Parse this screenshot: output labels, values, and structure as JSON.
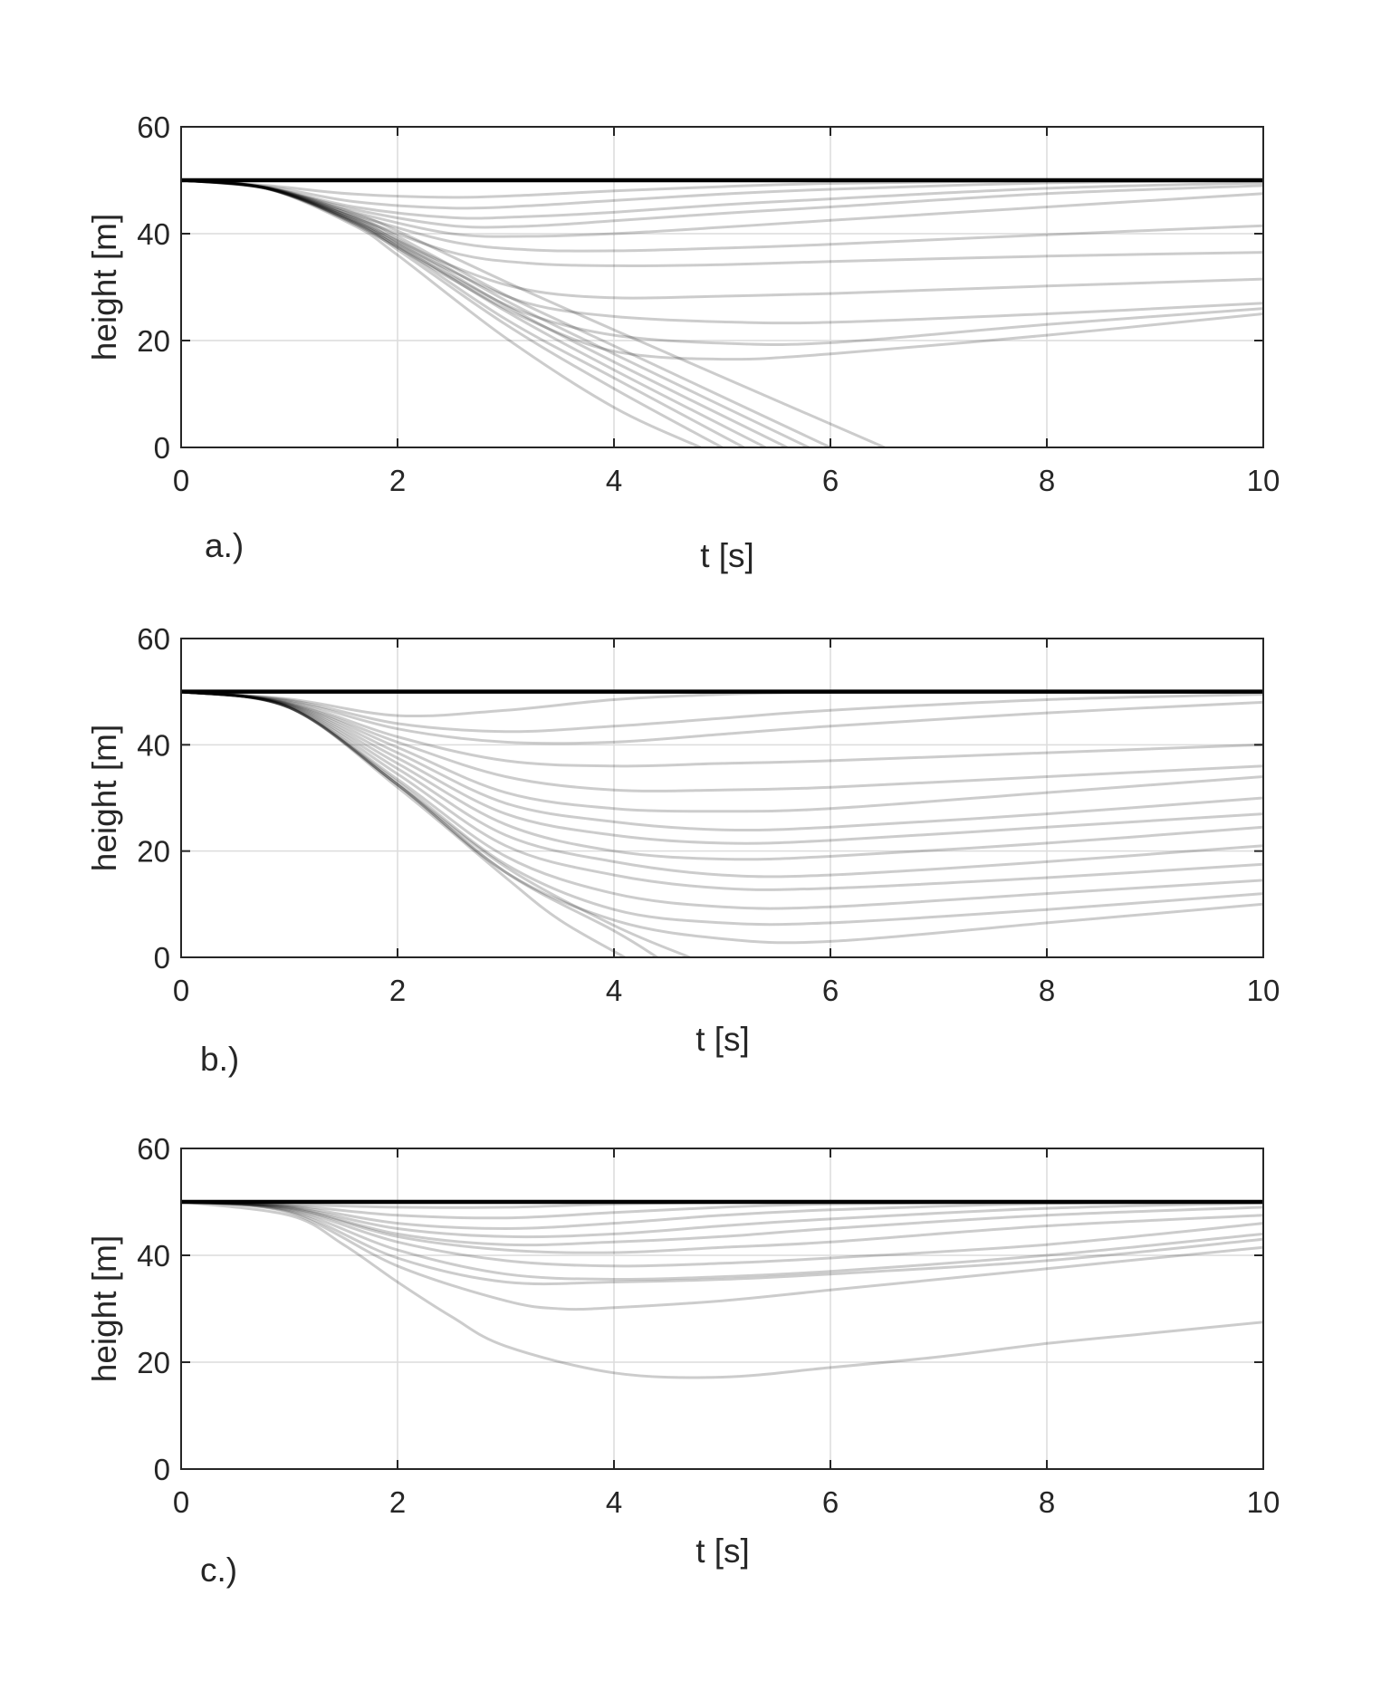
{
  "chart_data": [
    {
      "type": "line",
      "panel_label": "a.)",
      "xlabel": "t [s]",
      "ylabel": "height [m]",
      "xlim": [
        0,
        10
      ],
      "ylim": [
        0,
        60
      ],
      "xticks": [
        0,
        2,
        4,
        6,
        8,
        10
      ],
      "yticks": [
        0,
        20,
        40,
        60
      ],
      "grid": true,
      "reference_height": 50,
      "series": [
        {
          "t": [
            0,
            0.8,
            1.6,
            2.5,
            3.2,
            4.0,
            5.0,
            6.0,
            8.0,
            10.0
          ],
          "h": [
            50,
            49.0,
            47.4,
            46.8,
            47.2,
            48.0,
            48.8,
            49.4,
            49.9,
            50
          ]
        },
        {
          "t": [
            0,
            0.8,
            1.6,
            2.5,
            3.2,
            4.0,
            5.0,
            6.0,
            8.0,
            10.0
          ],
          "h": [
            50,
            48.8,
            46.0,
            44.8,
            45.2,
            46.2,
            47.4,
            48.3,
            49.5,
            50
          ]
        },
        {
          "t": [
            0,
            0.8,
            1.6,
            2.5,
            3.2,
            4.0,
            5.0,
            6.0,
            8.0,
            10.0
          ],
          "h": [
            50,
            48.6,
            45.0,
            43.0,
            43.2,
            44.0,
            45.4,
            46.5,
            48.5,
            49.5
          ]
        },
        {
          "t": [
            0,
            0.8,
            1.6,
            2.5,
            3.2,
            4.0,
            5.0,
            6.0,
            8.0,
            10.0
          ],
          "h": [
            50,
            48.6,
            44.5,
            41.5,
            41.4,
            42.4,
            43.8,
            45.0,
            47.5,
            49.0
          ]
        },
        {
          "t": [
            0,
            0.8,
            1.6,
            2.5,
            3.2,
            4.0,
            5.0,
            6.0,
            8.0,
            10.0
          ],
          "h": [
            50,
            48.5,
            44.0,
            40.0,
            39.5,
            40.0,
            41.2,
            42.5,
            45.0,
            47.5
          ]
        },
        {
          "t": [
            0,
            0.8,
            1.6,
            2.5,
            3.2,
            4.0,
            5.0,
            6.0,
            8.0,
            10.0
          ],
          "h": [
            50,
            48.5,
            43.5,
            38.5,
            37.0,
            36.8,
            37.3,
            38.0,
            39.8,
            41.5
          ]
        },
        {
          "t": [
            0,
            0.8,
            1.6,
            2.5,
            3.2,
            4.0,
            5.0,
            6.0,
            8.0,
            10.0
          ],
          "h": [
            50,
            48.4,
            43.0,
            36.5,
            34.5,
            34.0,
            34.2,
            34.8,
            35.8,
            36.5
          ]
        },
        {
          "t": [
            0,
            0.8,
            1.6,
            2.5,
            3.2,
            4.0,
            5.0,
            6.0,
            8.0,
            10.0
          ],
          "h": [
            50,
            48.4,
            42.5,
            34.0,
            29.5,
            28.0,
            28.3,
            28.8,
            30.2,
            31.5
          ]
        },
        {
          "t": [
            0,
            0.8,
            1.6,
            2.5,
            3.2,
            4.0,
            5.0,
            6.0,
            8.0,
            10.0
          ],
          "h": [
            50,
            48.4,
            42.2,
            33.0,
            27.0,
            24.5,
            23.5,
            23.4,
            25.0,
            27.0
          ]
        },
        {
          "t": [
            0,
            0.8,
            1.6,
            2.5,
            3.2,
            4.0,
            5.0,
            6.0,
            8.0,
            10.0
          ],
          "h": [
            50,
            48.4,
            42.0,
            32.0,
            25.0,
            21.0,
            19.5,
            19.6,
            23.0,
            26.0
          ]
        },
        {
          "t": [
            0,
            0.8,
            1.6,
            2.5,
            3.2,
            4.0,
            5.0,
            6.0,
            8.0,
            10.0
          ],
          "h": [
            50,
            48.4,
            41.8,
            31.5,
            24.0,
            18.0,
            16.5,
            17.5,
            21.0,
            25.0
          ]
        },
        {
          "t": [
            0,
            0.8,
            1.6,
            2.0,
            3.0,
            4.0,
            4.8
          ],
          "h": [
            50,
            48.4,
            41.5,
            36.0,
            20.5,
            7.5,
            0
          ]
        },
        {
          "t": [
            0,
            0.8,
            1.6,
            2.0,
            3.0,
            4.0,
            5.0
          ],
          "h": [
            50,
            48.5,
            42.0,
            37.0,
            23.0,
            11.0,
            0
          ]
        },
        {
          "t": [
            0,
            0.8,
            1.6,
            2.0,
            3.0,
            4.0,
            5.2
          ],
          "h": [
            50,
            48.5,
            42.3,
            37.5,
            24.0,
            13.0,
            0
          ]
        },
        {
          "t": [
            0,
            0.8,
            1.6,
            2.0,
            3.0,
            4.0,
            5.4
          ],
          "h": [
            50,
            48.5,
            42.5,
            38.0,
            25.5,
            14.5,
            0
          ]
        },
        {
          "t": [
            0,
            0.8,
            1.6,
            2.0,
            3.0,
            4.0,
            5.6
          ],
          "h": [
            50,
            48.5,
            42.8,
            38.5,
            26.5,
            16.0,
            0
          ]
        },
        {
          "t": [
            0,
            0.8,
            1.6,
            2.0,
            3.0,
            4.0,
            5.8
          ],
          "h": [
            50,
            48.5,
            43.0,
            39.0,
            27.5,
            17.5,
            0
          ]
        },
        {
          "t": [
            0,
            0.8,
            1.6,
            2.0,
            3.0,
            4.0,
            6.0
          ],
          "h": [
            50,
            48.6,
            43.3,
            39.5,
            28.5,
            19.0,
            0
          ]
        },
        {
          "t": [
            0,
            0.8,
            1.6,
            2.0,
            3.0,
            4.0,
            6.5
          ],
          "h": [
            50,
            48.6,
            43.8,
            40.5,
            31.0,
            22.0,
            0
          ]
        }
      ]
    },
    {
      "type": "line",
      "panel_label": "b.)",
      "xlabel": "t [s]",
      "ylabel": "height [m]",
      "xlim": [
        0,
        10
      ],
      "ylim": [
        0,
        60
      ],
      "xticks": [
        0,
        2,
        4,
        6,
        8,
        10
      ],
      "yticks": [
        0,
        20,
        40,
        60
      ],
      "grid": true,
      "reference_height": 50,
      "series": [
        {
          "t": [
            0,
            1.0,
            2.0,
            3.0,
            4.0,
            5.0,
            6.0,
            8.0,
            10.0
          ],
          "h": [
            50,
            48.6,
            45.5,
            46.5,
            48.5,
            49.5,
            49.9,
            50,
            50
          ]
        },
        {
          "t": [
            0,
            1.0,
            2.0,
            3.0,
            4.0,
            5.0,
            6.0,
            8.0,
            10.0
          ],
          "h": [
            50,
            48.4,
            44.0,
            42.5,
            43.5,
            45.0,
            46.5,
            48.5,
            49.5
          ]
        },
        {
          "t": [
            0,
            1.0,
            2.0,
            3.0,
            4.0,
            5.0,
            6.0,
            8.0,
            10.0
          ],
          "h": [
            50,
            48.2,
            43.0,
            40.5,
            40.5,
            42.0,
            43.5,
            46.0,
            48.0
          ]
        },
        {
          "t": [
            0,
            1.0,
            2.0,
            3.0,
            4.0,
            5.0,
            6.0,
            8.0,
            10.0
          ],
          "h": [
            50,
            48.0,
            41.5,
            37.0,
            36.0,
            36.5,
            37.0,
            38.5,
            40.0
          ]
        },
        {
          "t": [
            0,
            1.0,
            2.0,
            3.0,
            4.0,
            5.0,
            6.0,
            8.0,
            10.0
          ],
          "h": [
            50,
            47.8,
            40.5,
            34.0,
            31.5,
            31.5,
            32.0,
            34.0,
            36.0
          ]
        },
        {
          "t": [
            0,
            1.0,
            2.0,
            3.0,
            4.0,
            5.0,
            6.0,
            8.0,
            10.0
          ],
          "h": [
            50,
            47.7,
            39.5,
            31.0,
            28.0,
            27.5,
            28.0,
            31.0,
            34.0
          ]
        },
        {
          "t": [
            0,
            1.0,
            2.0,
            3.0,
            4.0,
            5.0,
            6.0,
            8.0,
            10.0
          ],
          "h": [
            50,
            47.6,
            38.5,
            29.0,
            25.5,
            24.0,
            24.5,
            27.0,
            30.0
          ]
        },
        {
          "t": [
            0,
            1.0,
            2.0,
            3.0,
            4.0,
            5.0,
            6.0,
            8.0,
            10.0
          ],
          "h": [
            50,
            47.5,
            37.5,
            27.0,
            23.0,
            21.5,
            22.0,
            24.5,
            27.0
          ]
        },
        {
          "t": [
            0,
            1.0,
            2.0,
            3.0,
            4.0,
            5.0,
            6.0,
            8.0,
            10.0
          ],
          "h": [
            50,
            47.4,
            36.5,
            25.0,
            20.0,
            18.5,
            19.0,
            21.5,
            24.5
          ]
        },
        {
          "t": [
            0,
            1.0,
            2.0,
            3.0,
            4.0,
            5.0,
            6.0,
            8.0,
            10.0
          ],
          "h": [
            50,
            47.3,
            35.5,
            23.0,
            18.0,
            15.5,
            15.5,
            18.0,
            21.0
          ]
        },
        {
          "t": [
            0,
            1.0,
            2.0,
            3.0,
            4.0,
            5.0,
            6.0,
            8.0,
            10.0
          ],
          "h": [
            50,
            47.2,
            34.5,
            21.0,
            15.5,
            13.0,
            13.0,
            15.0,
            17.5
          ]
        },
        {
          "t": [
            0,
            1.0,
            2.0,
            3.0,
            4.0,
            5.0,
            6.0,
            8.0,
            10.0
          ],
          "h": [
            50,
            47.1,
            33.5,
            19.0,
            12.0,
            9.5,
            9.5,
            12.0,
            14.5
          ]
        },
        {
          "t": [
            0,
            1.0,
            2.0,
            3.0,
            4.0,
            5.0,
            6.0,
            8.0,
            10.0
          ],
          "h": [
            50,
            47.0,
            33.0,
            17.5,
            9.0,
            6.5,
            6.5,
            9.0,
            12.0
          ]
        },
        {
          "t": [
            0,
            1.0,
            2.0,
            3.0,
            4.0,
            5.0,
            6.0,
            8.0,
            10.0
          ],
          "h": [
            50,
            47.0,
            32.5,
            16.0,
            7.0,
            3.5,
            3.0,
            6.5,
            10.0
          ]
        },
        {
          "t": [
            0,
            1.0,
            2.0,
            3.0,
            3.5,
            4.1
          ],
          "h": [
            50,
            47.0,
            32.0,
            15.0,
            7.0,
            0
          ]
        },
        {
          "t": [
            0,
            1.0,
            2.0,
            3.0,
            4.0,
            4.7
          ],
          "h": [
            50,
            47.0,
            32.5,
            17.0,
            6.0,
            0
          ]
        },
        {
          "t": [
            0,
            1.0,
            2.0,
            3.0,
            4.0,
            4.4
          ],
          "h": [
            50,
            47.0,
            32.5,
            16.0,
            5.0,
            0
          ]
        }
      ]
    },
    {
      "type": "line",
      "panel_label": "c.)",
      "xlabel": "t [s]",
      "ylabel": "height [m]",
      "xlim": [
        0,
        10
      ],
      "ylim": [
        0,
        60
      ],
      "xticks": [
        0,
        2,
        4,
        6,
        8,
        10
      ],
      "yticks": [
        0,
        20,
        40,
        60
      ],
      "grid": true,
      "reference_height": 50,
      "series": [
        {
          "t": [
            0,
            1.0,
            2.0,
            3.0,
            4.0,
            5.0,
            6.0,
            8.0,
            10.0
          ],
          "h": [
            50,
            49.5,
            49.0,
            49.0,
            49.6,
            49.9,
            50,
            50,
            50
          ]
        },
        {
          "t": [
            0,
            1.0,
            2.0,
            3.0,
            4.0,
            5.0,
            6.0,
            8.0,
            10.0
          ],
          "h": [
            50,
            49.3,
            47.5,
            47.0,
            48.0,
            49.0,
            49.6,
            50,
            50
          ]
        },
        {
          "t": [
            0,
            1.0,
            2.0,
            3.0,
            4.0,
            5.0,
            6.0,
            8.0,
            10.0
          ],
          "h": [
            50,
            49.2,
            46.0,
            45.0,
            46.0,
            47.5,
            48.5,
            49.7,
            50
          ]
        },
        {
          "t": [
            0,
            1.0,
            2.0,
            3.0,
            4.0,
            5.0,
            6.0,
            8.0,
            10.0
          ],
          "h": [
            50,
            49.0,
            45.0,
            43.5,
            44.0,
            45.5,
            46.8,
            48.8,
            49.8
          ]
        },
        {
          "t": [
            0,
            1.0,
            2.0,
            3.0,
            4.0,
            5.0,
            6.0,
            8.0,
            10.0
          ],
          "h": [
            50,
            48.9,
            44.0,
            42.0,
            42.5,
            43.5,
            45.0,
            47.5,
            49.0
          ]
        },
        {
          "t": [
            0,
            1.0,
            2.0,
            3.0,
            4.0,
            5.0,
            6.0,
            8.0,
            10.0
          ],
          "h": [
            50,
            48.8,
            43.5,
            41.0,
            40.5,
            41.5,
            42.5,
            45.5,
            47.5
          ]
        },
        {
          "t": [
            0,
            1.0,
            2.0,
            3.0,
            4.0,
            5.0,
            6.0,
            8.0,
            10.0
          ],
          "h": [
            50,
            48.6,
            42.5,
            39.0,
            38.0,
            38.5,
            39.5,
            42.0,
            46.0
          ]
        },
        {
          "t": [
            0,
            1.0,
            2.0,
            3.0,
            4.0,
            5.0,
            6.0,
            8.0,
            10.0
          ],
          "h": [
            50,
            48.4,
            41.0,
            36.5,
            35.5,
            36.0,
            37.0,
            40.0,
            44.0
          ]
        },
        {
          "t": [
            0,
            1.0,
            2.0,
            3.0,
            4.0,
            5.0,
            6.0,
            8.0,
            10.0
          ],
          "h": [
            50,
            48.2,
            39.5,
            35.0,
            35.0,
            35.5,
            36.5,
            39.0,
            43.0
          ]
        },
        {
          "t": [
            0,
            1.0,
            2.0,
            3.0,
            3.5,
            4.0,
            5.0,
            6.0,
            8.0,
            10.0
          ],
          "h": [
            50,
            48.0,
            38.0,
            31.5,
            30.0,
            30.2,
            31.5,
            33.5,
            37.5,
            41.5
          ]
        },
        {
          "t": [
            0,
            1.0,
            1.5,
            2.0,
            2.5,
            3.0,
            4.0,
            5.0,
            6.0,
            7.0,
            8.0,
            9.0,
            10.0
          ],
          "h": [
            50,
            47.5,
            42.0,
            35.0,
            28.5,
            23.0,
            18.0,
            17.2,
            19.0,
            21.0,
            23.5,
            25.5,
            27.5
          ]
        }
      ]
    }
  ]
}
